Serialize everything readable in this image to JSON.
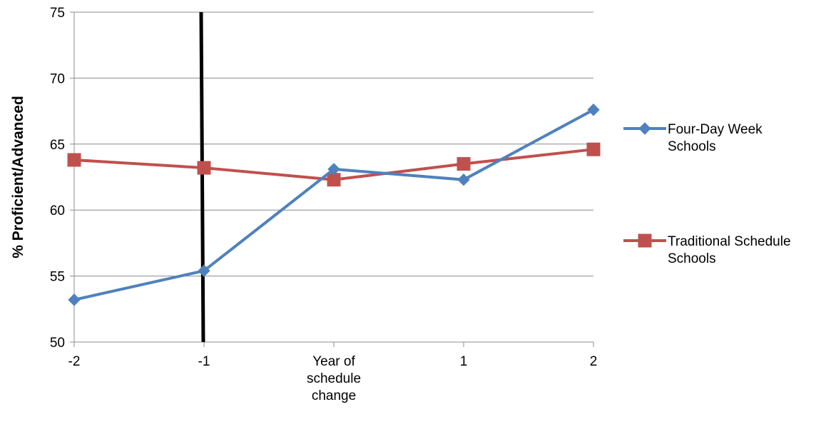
{
  "chart_data": {
    "type": "line",
    "title": "",
    "xlabel": "",
    "ylabel": "% Proficient/Advanced",
    "categories": [
      "-2",
      "-1",
      "Year of schedule change",
      "1",
      "2"
    ],
    "category_tick_lines": [
      [
        "-2"
      ],
      [
        "-1"
      ],
      [
        "Year of",
        "schedule",
        "change"
      ],
      [
        "1"
      ],
      [
        "2"
      ]
    ],
    "ylim": [
      50,
      75
    ],
    "yticks": [
      50,
      55,
      60,
      65,
      70,
      75
    ],
    "grid": "horizontal",
    "legend_position": "right",
    "reference_line": {
      "x_category": "-1",
      "color": "#000000"
    },
    "series": [
      {
        "name": "Four-Day Week Schools",
        "legend_lines": [
          "Four-Day Week",
          "Schools"
        ],
        "marker": "diamond",
        "color": "#4f81bd",
        "values": [
          53.2,
          55.4,
          63.1,
          62.3,
          67.6
        ]
      },
      {
        "name": "Traditional Schedule Schools",
        "legend_lines": [
          "Traditional Schedule",
          "Schools"
        ],
        "marker": "square",
        "color": "#c0504d",
        "values": [
          63.8,
          63.2,
          62.3,
          63.5,
          64.6
        ]
      }
    ]
  }
}
